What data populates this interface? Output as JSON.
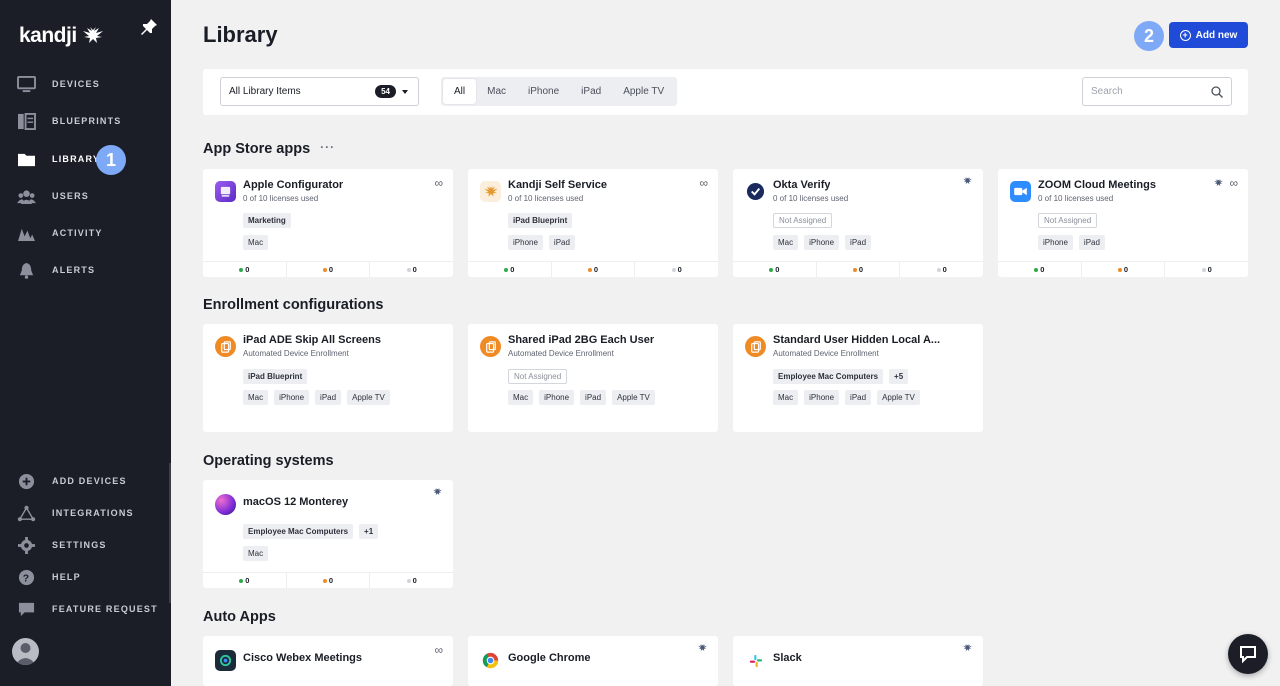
{
  "brand": {
    "name": "kandji"
  },
  "sidebar": {
    "top_items": [
      {
        "label": "DEVICES",
        "icon": "monitor-icon"
      },
      {
        "label": "BLUEPRINTS",
        "icon": "blueprints-icon"
      },
      {
        "label": "LIBRARY",
        "icon": "folder-icon",
        "active": true
      },
      {
        "label": "USERS",
        "icon": "users-icon"
      },
      {
        "label": "ACTIVITY",
        "icon": "activity-icon"
      },
      {
        "label": "ALERTS",
        "icon": "bell-icon"
      }
    ],
    "bottom_items": [
      {
        "label": "ADD DEVICES",
        "icon": "plus-circle-icon"
      },
      {
        "label": "INTEGRATIONS",
        "icon": "integrations-icon"
      },
      {
        "label": "SETTINGS",
        "icon": "gear-icon"
      },
      {
        "label": "HELP",
        "icon": "help-icon"
      },
      {
        "label": "FEATURE REQUEST",
        "icon": "speech-bubble-icon"
      }
    ]
  },
  "steps": {
    "one": "1",
    "two": "2"
  },
  "header": {
    "title": "Library",
    "add_new_label": "Add new"
  },
  "filters": {
    "select_value": "All Library Items",
    "select_count": "54",
    "tabs": [
      "All",
      "Mac",
      "iPhone",
      "iPad",
      "Apple TV"
    ],
    "active_tab": "All",
    "search_placeholder": "Search"
  },
  "sections": {
    "app_store": "App Store apps",
    "enrollment": "Enrollment configurations",
    "os": "Operating systems",
    "auto_apps": "Auto Apps"
  },
  "cards": {
    "apple_configurator": {
      "title": "Apple Configurator",
      "subtitle": "0 of 10 licenses used",
      "blueprints": [
        "Marketing"
      ],
      "devices": [
        "Mac"
      ],
      "stats": [
        "0",
        "0",
        "0"
      ]
    },
    "kandji_self_service": {
      "title": "Kandji Self Service",
      "subtitle": "0 of 10 licenses used",
      "blueprints": [
        "iPad Blueprint"
      ],
      "devices": [
        "iPhone",
        "iPad"
      ],
      "stats": [
        "0",
        "0",
        "0"
      ]
    },
    "okta_verify": {
      "title": "Okta Verify",
      "subtitle": "0 of 10 licenses used",
      "blueprints": [
        "Not Assigned"
      ],
      "devices": [
        "Mac",
        "iPhone",
        "iPad"
      ],
      "stats": [
        "0",
        "0",
        "0"
      ]
    },
    "zoom": {
      "title": "ZOOM Cloud Meetings",
      "subtitle": "0 of 10 licenses used",
      "blueprints": [
        "Not Assigned"
      ],
      "devices": [
        "iPhone",
        "iPad"
      ],
      "stats": [
        "0",
        "0",
        "0"
      ]
    },
    "ipad_ade": {
      "title": "iPad ADE Skip All Screens",
      "subtitle": "Automated Device Enrollment",
      "blueprints": [
        "iPad Blueprint"
      ],
      "devices": [
        "Mac",
        "iPhone",
        "iPad",
        "Apple TV"
      ]
    },
    "shared_ipad": {
      "title": "Shared iPad 2BG Each User",
      "subtitle": "Automated Device Enrollment",
      "blueprints": [
        "Not Assigned"
      ],
      "devices": [
        "Mac",
        "iPhone",
        "iPad",
        "Apple TV"
      ]
    },
    "standard_user": {
      "title": "Standard User Hidden Local A...",
      "subtitle": "Automated Device Enrollment",
      "blueprints": [
        "Employee Mac Computers",
        "+5"
      ],
      "devices": [
        "Mac",
        "iPhone",
        "iPad",
        "Apple TV"
      ]
    },
    "macos_monterey": {
      "title": "macOS 12 Monterey",
      "blueprints": [
        "Employee Mac Computers",
        "+1"
      ],
      "devices": [
        "Mac"
      ],
      "stats": [
        "0",
        "0",
        "0"
      ]
    },
    "webex": {
      "title": "Cisco Webex Meetings"
    },
    "chrome": {
      "title": "Google Chrome"
    },
    "slack": {
      "title": "Slack"
    }
  },
  "colors": {
    "sidebar_bg": "#1b1e27",
    "accent_blue": "#1f4bd8",
    "step_badge": "#7ea9f7",
    "status_green": "#2eaa4a",
    "status_orange": "#f08a24",
    "status_gray": "#d0d3d9"
  }
}
